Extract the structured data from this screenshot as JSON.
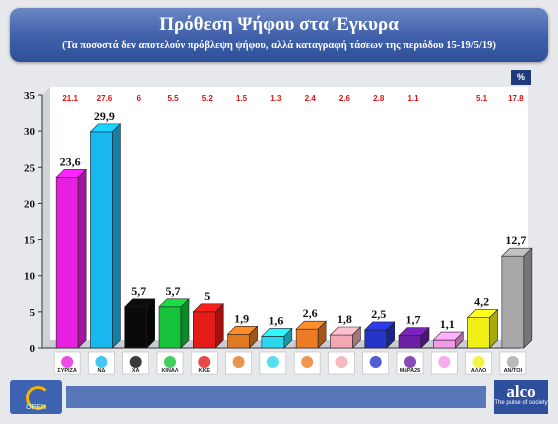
{
  "header": {
    "title": "Πρόθεση Ψήφου στα Έγκυρα",
    "subtitle": "(Τα ποσοστά δεν αποτελούν πρόβλεψη ψήφου, αλλά καταγραφή τάσεων της περιόδου 15-19/5/19)",
    "pct_badge": "%"
  },
  "footer": {
    "left_logo_text": "OPEN",
    "brand": "alco",
    "brand_tagline": "The pulse of society"
  },
  "chart_data": {
    "type": "bar",
    "categories": [
      "ΣΥΡΙΖΑ",
      "ΝΔ",
      "ΧΑ",
      "ΚΙΝΑΛ",
      "ΚΚΕ",
      "",
      "",
      "",
      "",
      "",
      "ΜέΡΑ25",
      "",
      "ΑΛΛΟ",
      "ΑΝ/ΤΟΙ"
    ],
    "values": [
      23.6,
      29.9,
      5.7,
      5.7,
      5,
      1.9,
      1.6,
      2.6,
      1.8,
      2.5,
      1.7,
      1.1,
      4.2,
      12.7
    ],
    "value_labels": [
      "23,6",
      "29,9",
      "5,7",
      "5,7",
      "5",
      "1,9",
      "1,6",
      "2,6",
      "1,8",
      "2,5",
      "1,7",
      "1,1",
      "4,2",
      "12,7"
    ],
    "previous_labels": [
      "21.1",
      "27.6",
      "6",
      "5.5",
      "5.2",
      "1.5",
      "1.3",
      "2.4",
      "2.6",
      "2.8",
      "1.1",
      "",
      "5.1",
      "17.8"
    ],
    "colors": [
      "#e71fe0",
      "#19b7f0",
      "#0a0a0a",
      "#15c23a",
      "#e41b17",
      "#e07a22",
      "#29d7ee",
      "#ee7b25",
      "#f4a6b2",
      "#2535c8",
      "#6a1fa5",
      "#f39ae6",
      "#f0f016",
      "#a8a8a8"
    ],
    "ylim": [
      0,
      35
    ],
    "yticks": [
      0,
      5,
      10,
      15,
      20,
      25,
      30,
      35
    ],
    "xlabel": "",
    "ylabel": "",
    "grid": false,
    "legend": "none"
  }
}
